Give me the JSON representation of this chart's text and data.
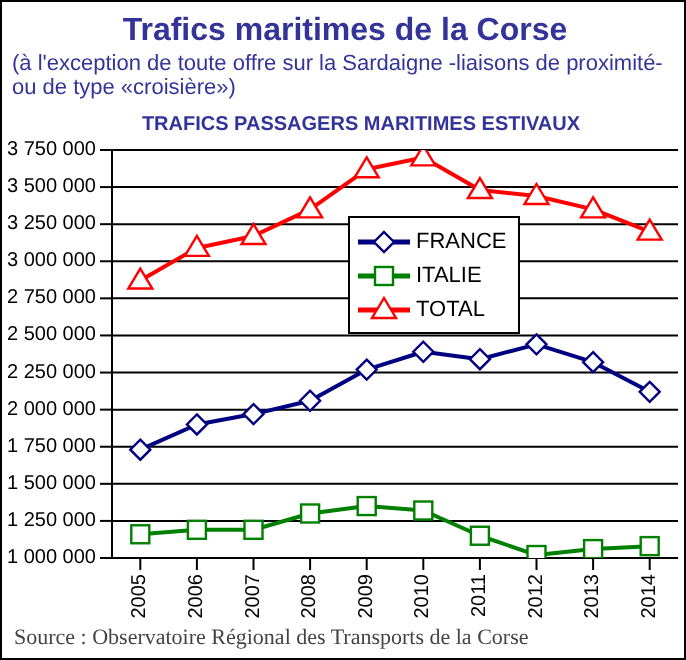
{
  "chart_data": {
    "type": "line",
    "title": "Trafics maritimes de la Corse",
    "subtitle": "(à l'exception de toute offre sur la Sardaigne -liaisons de proximité- ou de type «croisière»)",
    "annotations": [
      "TRAFICS PASSAGERS MARITIMES ESTIVAUX",
      "Source : Observatoire Régional des Transports de la Corse"
    ],
    "categories": [
      "2005",
      "2006",
      "2007",
      "2008",
      "2009",
      "2010",
      "2011",
      "2012",
      "2013",
      "2014"
    ],
    "series": [
      {
        "name": "FRANCE",
        "color": "#000080",
        "marker": "diamond",
        "values": [
          1730000,
          1900000,
          1970000,
          2060000,
          2270000,
          2390000,
          2340000,
          2440000,
          2320000,
          2120000
        ]
      },
      {
        "name": "ITALIE",
        "color": "#008000",
        "marker": "square",
        "values": [
          1160000,
          1190000,
          1190000,
          1300000,
          1350000,
          1320000,
          1150000,
          1020000,
          1060000,
          1080000
        ]
      },
      {
        "name": "TOTAL",
        "color": "#ff0000",
        "marker": "triangle",
        "values": [
          2870000,
          3090000,
          3170000,
          3350000,
          3620000,
          3700000,
          3480000,
          3440000,
          3350000,
          3200000
        ]
      }
    ],
    "ylim": [
      1000000,
      3750000
    ],
    "yticks": [
      {
        "value": 1000000,
        "label": "1 000 000"
      },
      {
        "value": 1250000,
        "label": "1 250 000"
      },
      {
        "value": 1500000,
        "label": "1 500 000"
      },
      {
        "value": 1750000,
        "label": "1 750 000"
      },
      {
        "value": 2000000,
        "label": "2 000 000"
      },
      {
        "value": 2250000,
        "label": "2 250 000"
      },
      {
        "value": 2500000,
        "label": "2 500 000"
      },
      {
        "value": 2750000,
        "label": "2 750 000"
      },
      {
        "value": 3000000,
        "label": "3 000 000"
      },
      {
        "value": 3250000,
        "label": "3 250 000"
      },
      {
        "value": 3500000,
        "label": "3 500 000"
      },
      {
        "value": 3750000,
        "label": "3 750 000"
      }
    ],
    "grid": "y",
    "legend": "top"
  }
}
